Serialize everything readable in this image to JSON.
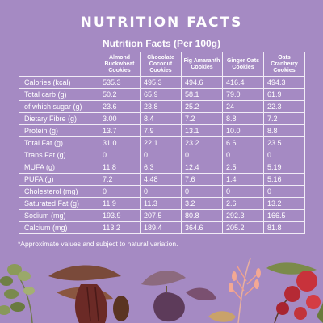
{
  "title": "NUTRITION FACTS",
  "subtitle": "Nutrition Facts (Per 100g)",
  "columns": [
    "Almond Buckwheat Cookies",
    "Chocolate Coconut Cookies",
    "Fig Amaranth Cookies",
    "Ginger Oats Cookies",
    "Oats Cranberry Cookies"
  ],
  "rows": [
    {
      "label": "Calories (kcal)",
      "values": [
        "535.3",
        "495.3",
        "494.6",
        "416.4",
        "494.3"
      ]
    },
    {
      "label": "Total carb (g)",
      "values": [
        "50.2",
        "65.9",
        "58.1",
        "79.0",
        "61.9"
      ]
    },
    {
      "label": "of which sugar (g)",
      "values": [
        "23.6",
        "23.8",
        "25.2",
        "24",
        "22.3"
      ]
    },
    {
      "label": "Dietary Fibre (g)",
      "values": [
        "3.00",
        "8.4",
        "7.2",
        "8.8",
        "7.2"
      ]
    },
    {
      "label": "Protein (g)",
      "values": [
        "13.7",
        "7.9",
        "13.1",
        "10.0",
        "8.8"
      ]
    },
    {
      "label": "Total Fat (g)",
      "values": [
        "31.0",
        "22.1",
        "23.2",
        "6.6",
        "23.5"
      ]
    },
    {
      "label": "Trans Fat (g)",
      "values": [
        "0",
        "0",
        "0",
        "0",
        "0"
      ]
    },
    {
      "label": "MUFA (g)",
      "values": [
        "11.8",
        "6.3",
        "12.4",
        "2.5",
        "5.19"
      ]
    },
    {
      "label": "PUFA (g)",
      "values": [
        "7.2",
        "4.48",
        "7.6",
        "1.4",
        "5.16"
      ]
    },
    {
      "label": "Cholesterol (mg)",
      "values": [
        "0",
        "0",
        "0",
        "0",
        "0"
      ]
    },
    {
      "label": "Saturated Fat (g)",
      "values": [
        "11.9",
        "11.3",
        "3.2",
        "2.6",
        "13.2"
      ]
    },
    {
      "label": "Sodium (mg)",
      "values": [
        "193.9",
        "207.5",
        "80.8",
        "292.3",
        "166.5"
      ]
    },
    {
      "label": "Calcium (mg)",
      "values": [
        "113.2",
        "189.4",
        "364.6",
        "205.2",
        "81.8"
      ]
    }
  ],
  "footnote": "*Approximate values and subject to natural variation.",
  "colors": {
    "background": "#a58ac3",
    "grid": "#f1ecf6",
    "text": "#ffffff"
  },
  "illustration_icons": [
    "herb-sprig-icon",
    "cacao-pod-icon",
    "fig-icon",
    "oat-stalk-icon",
    "ginger-icon",
    "cranberry-icon"
  ]
}
